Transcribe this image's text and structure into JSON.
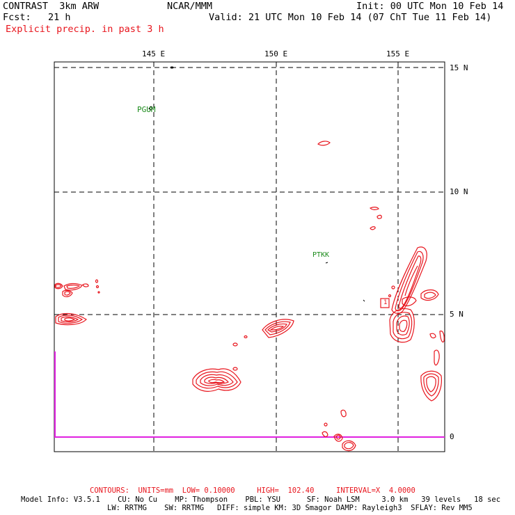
{
  "header": {
    "model": "CONTRAST  3km ARW",
    "org": "NCAR/MMM",
    "init": "Init: 00 UTC Mon 10 Feb 14",
    "fcst": "Fcst:   21 h",
    "valid": "Valid: 21 UTC Mon 10 Feb 14 (07 ChT Tue 11 Feb 14)",
    "field": "Explicit precip. in past 3 h"
  },
  "axes": {
    "lon_labels": [
      "145 E",
      "150 E",
      "155 E"
    ],
    "lat_labels": [
      "15 N",
      "10 N",
      "5 N",
      "0"
    ]
  },
  "stations": [
    {
      "name": "PGUM"
    },
    {
      "name": "PTKK"
    }
  ],
  "marker_label": "1",
  "footer": {
    "contours": "CONTOURS:  UNITS=mm  LOW= 0.10000     HIGH=  102.40     INTERVAL=X  4.0000",
    "model_info_1": "Model Info: V3.5.1    CU: No Cu    MP: Thompson    PBL: YSU      SF: Noah LSM     3.0 km   39 levels   18 sec",
    "model_info_2": "LW: RRTMG    SW: RRTMG   DIFF: simple KM: 3D Smagor DAMP: Rayleigh3  SFLAY: Rev MM5"
  },
  "colors": {
    "contour": "#e8141c",
    "label_red": "#e8141c",
    "station": "#1a8a1a",
    "boundary": "#e020e0"
  }
}
